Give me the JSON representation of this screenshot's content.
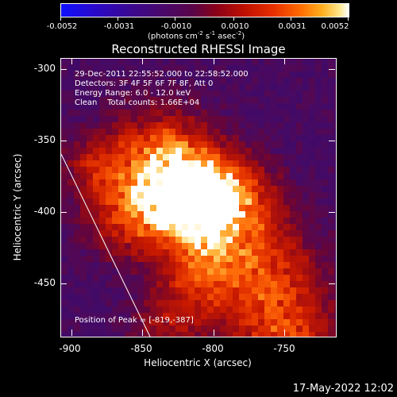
{
  "colorbar": {
    "ticks": [
      "-0.0052",
      "-0.0031",
      "-0.0010",
      "0.0010",
      "0.0031",
      "0.0052"
    ],
    "units": "(photons cm",
    "units_exp1": "-2",
    "units_mid1": " s",
    "units_exp2": "-1",
    "units_mid2": " asec",
    "units_exp3": "-2",
    "units_end": ")"
  },
  "title": "Reconstructed RHESSI Image",
  "info": {
    "line1": "29-Dec-2011 22:55:52.000 to 22:58:52.000",
    "line2": "Detectors: 3F 4F 5F 6F 7F 8F, Att 0",
    "line3": "Energy Range: 6.0 - 12.0 keV",
    "line4": "Clean    Total counts: 1.66E+04"
  },
  "peak_label": "Position of Peak = [-819,-387]",
  "axes": {
    "xlabel": "Heliocentric X (arcsec)",
    "ylabel": "Heliocentric Y (arcsec)",
    "xticks": [
      "-900",
      "-850",
      "-800",
      "-750"
    ],
    "yticks": [
      "-300",
      "-350",
      "-400",
      "-450"
    ]
  },
  "peak": {
    "x": -819,
    "y": -387
  },
  "timestamp": "17-May-2022 12:02"
}
